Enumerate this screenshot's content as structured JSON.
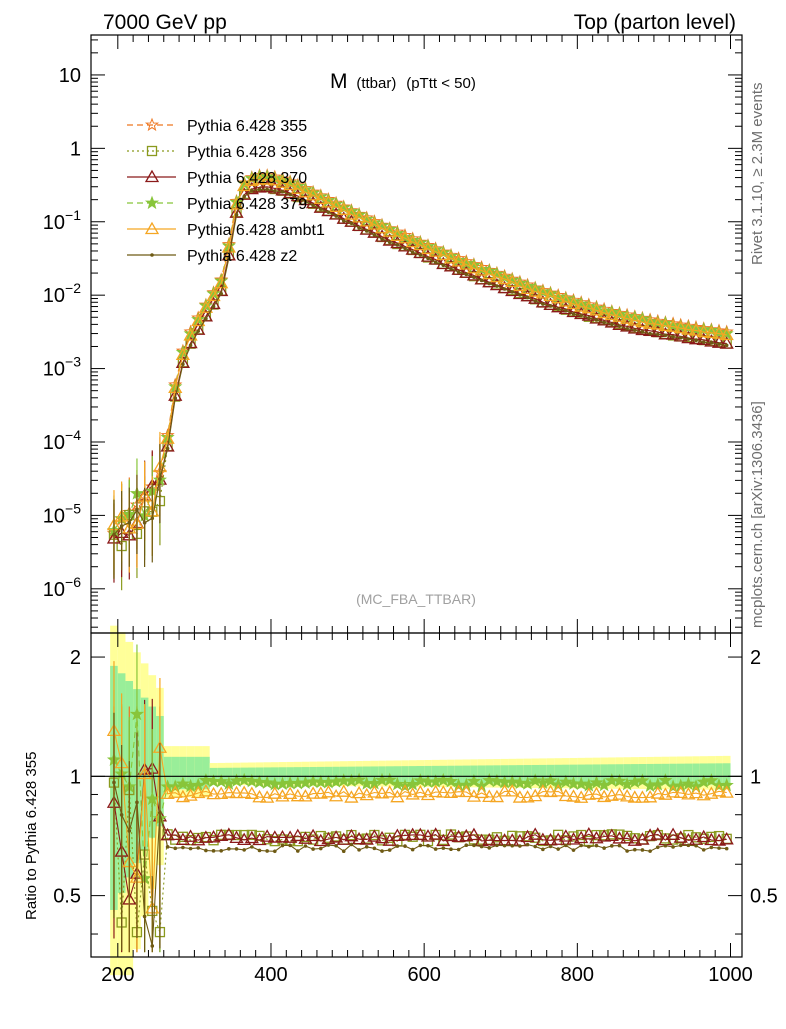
{
  "header": {
    "left": "7000 GeV pp",
    "right": "Top (parton level)"
  },
  "side_labels": {
    "rivet": "Rivet 3.1.10, ≥ 2.3M events",
    "mcplots": "mcplots.cern.ch [arXiv:1306.3436]"
  },
  "colors": {
    "p355": "#ee7722",
    "p356": "#8a9a1e",
    "p370": "#8b1a1a",
    "p379": "#88c53a",
    "ambt1": "#f5a623",
    "z2": "#6e5a14",
    "band_yellow": "#ffff99",
    "band_green": "#99ee99"
  },
  "chart_data": [
    {
      "type": "line",
      "title": "M",
      "title_sub": "(ttbar)",
      "title_cond": "(pTtt < 50)",
      "watermark": "(MC_FBA_TTBAR)",
      "xlim": [
        165,
        1015
      ],
      "ylim": [
        2.5e-07,
        35
      ],
      "yscale": "log",
      "grid": false,
      "legend_position": "top-left",
      "y_ticks": [
        {
          "value": 10,
          "label": "10"
        },
        {
          "value": 1,
          "label": "1"
        },
        {
          "value": 0.1,
          "base": "10",
          "exp": "−1"
        },
        {
          "value": 0.01,
          "base": "10",
          "exp": "−2"
        },
        {
          "value": 0.001,
          "base": "10",
          "exp": "−3"
        },
        {
          "value": 0.0001,
          "base": "10",
          "exp": "−4"
        },
        {
          "value": 1e-05,
          "base": "10",
          "exp": "−5"
        },
        {
          "value": 1e-06,
          "base": "10",
          "exp": "−6"
        }
      ],
      "reference_shape": {
        "x": [
          190,
          200,
          210,
          220,
          230,
          240,
          250,
          260,
          270,
          280,
          290,
          300,
          310,
          320,
          330,
          340,
          350,
          360,
          370,
          380,
          390,
          400,
          420,
          440,
          460,
          480,
          500,
          550,
          600,
          650,
          700,
          750,
          800,
          850,
          900,
          950,
          1000
        ],
        "y": [
          4e-06,
          8e-06,
          1e-05,
          1.2e-05,
          1.6e-05,
          2e-05,
          3e-05,
          5e-05,
          0.0003,
          0.0012,
          0.0025,
          0.004,
          0.006,
          0.009,
          0.013,
          0.02,
          0.12,
          0.3,
          0.38,
          0.42,
          0.43,
          0.42,
          0.37,
          0.3,
          0.24,
          0.19,
          0.15,
          0.085,
          0.05,
          0.03,
          0.019,
          0.012,
          0.0082,
          0.0058,
          0.0045,
          0.0037,
          0.0031
        ]
      },
      "series": [
        {
          "name": "Pythia 6.428 355",
          "scale": 1.0,
          "marker": "star-open",
          "dash": "6,4"
        },
        {
          "name": "Pythia 6.428 356",
          "scale": 0.7,
          "marker": "square-open",
          "dash": "2,3"
        },
        {
          "name": "Pythia 6.428 370",
          "scale": 0.7,
          "marker": "triangle-open",
          "dash": ""
        },
        {
          "name": "Pythia 6.428 379",
          "scale": 0.96,
          "marker": "star-filled",
          "dash": "6,4"
        },
        {
          "name": "Pythia 6.428 ambt1",
          "scale": 0.9,
          "marker": "triangle-open",
          "dash": ""
        },
        {
          "name": "Pythia 6.428 z2",
          "scale": 0.66,
          "marker": "dot",
          "dash": ""
        }
      ]
    },
    {
      "type": "line",
      "ylabel": "Ratio to Pythia 6.428 355",
      "xlim": [
        165,
        1015
      ],
      "ylim": [
        0.35,
        2.3
      ],
      "yscale": "log",
      "x_ticks": [
        200,
        400,
        600,
        800,
        1000
      ],
      "y_ticks": [
        0.5,
        1,
        2
      ],
      "reference_line": 1,
      "grid": false
    }
  ]
}
